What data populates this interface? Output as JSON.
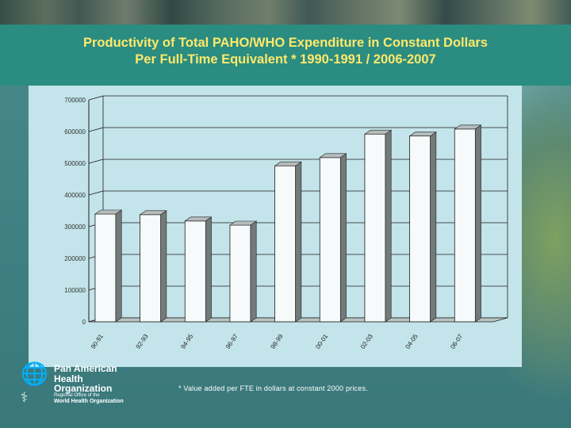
{
  "slide": {
    "title_line1": "Productivity of Total PAHO/WHO Expenditure in Constant Dollars",
    "title_line2": "Per Full-Time Equivalent * 1990-1991 / 2006-2007",
    "footnote": "* Value added per FTE in dollars at constant 2000 prices."
  },
  "logo": {
    "line1": "Pan American",
    "line2": "Health",
    "line3": "Organization",
    "sub1": "Regional Office of the",
    "sub2": "World Health Organization",
    "globe_icon": "paho-globe-icon",
    "who_icon": "who-emblem-icon"
  },
  "colors": {
    "title": "#ffe96a",
    "title_band": "#2b8c82",
    "panel": "#c3e4ea",
    "bar_front": "#f7fafa",
    "bar_side": "#737a7a",
    "bar_top": "#b5bdbd"
  },
  "chart_data": {
    "type": "bar",
    "title": "",
    "xlabel": "",
    "ylabel": "",
    "ylim": [
      0,
      700000
    ],
    "y_ticks": [
      0,
      100000,
      200000,
      300000,
      400000,
      500000,
      600000,
      700000
    ],
    "y_tick_labels": [
      "0",
      "100000",
      "200000",
      "300000",
      "400000",
      "500000",
      "600000",
      "700000"
    ],
    "categories": [
      "90-91",
      "92-93",
      "94-95",
      "96-97",
      "98-99",
      "00-01",
      "02-03",
      "04-05",
      "06-07"
    ],
    "values": [
      340000,
      338000,
      318000,
      305000,
      492000,
      518000,
      592000,
      586000,
      608000
    ],
    "grid": true,
    "style": "3d-columns"
  }
}
